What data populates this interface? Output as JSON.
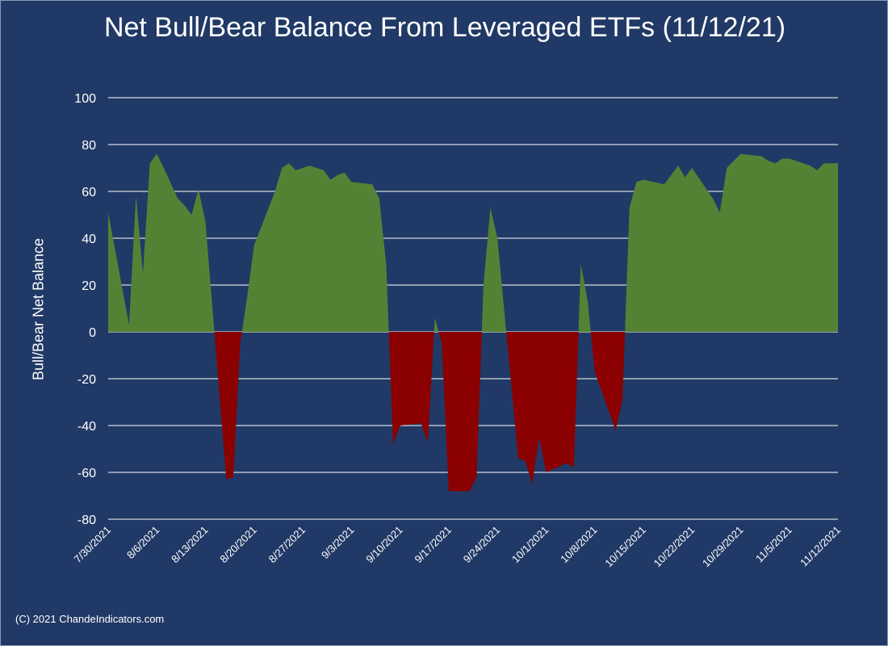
{
  "chart_data": {
    "type": "area",
    "title": "Net Bull/Bear Balance From Leveraged ETFs (11/12/21)",
    "xlabel": "",
    "ylabel": "Bull/Bear Net Balance",
    "ylim": [
      -80,
      100
    ],
    "yticks": [
      100,
      80,
      60,
      40,
      20,
      0,
      -20,
      -40,
      -60,
      -80
    ],
    "xlim": [
      "2021-07-30",
      "2021-11-12"
    ],
    "xtick_labels": [
      "7/30/2021",
      "8/6/2021",
      "8/13/2021",
      "8/20/2021",
      "8/27/2021",
      "9/3/2021",
      "9/10/2021",
      "9/17/2021",
      "9/24/2021",
      "10/1/2021",
      "10/8/2021",
      "10/15/2021",
      "10/22/2021",
      "10/29/2021",
      "11/5/2021",
      "11/12/2021"
    ],
    "grid": true,
    "legend": false,
    "colors": {
      "positive": "#548235",
      "negative": "#8b0000",
      "background": "#213966",
      "text": "#ffffff",
      "grid": "#ffffff"
    },
    "series": [
      {
        "x": [
          "2021-07-30",
          "2021-08-02",
          "2021-08-03",
          "2021-08-04",
          "2021-08-05",
          "2021-08-06",
          "2021-08-07",
          "2021-08-09",
          "2021-08-10",
          "2021-08-11",
          "2021-08-12",
          "2021-08-13",
          "2021-08-16",
          "2021-08-17",
          "2021-08-18",
          "2021-08-19",
          "2021-08-20",
          "2021-08-23",
          "2021-08-24",
          "2021-08-25",
          "2021-08-26",
          "2021-08-27",
          "2021-08-28",
          "2021-08-30",
          "2021-08-31",
          "2021-09-01",
          "2021-09-02",
          "2021-09-03",
          "2021-09-06",
          "2021-09-07",
          "2021-09-08",
          "2021-09-09",
          "2021-09-10",
          "2021-09-13",
          "2021-09-14",
          "2021-09-15",
          "2021-09-16",
          "2021-09-17",
          "2021-09-20",
          "2021-09-21",
          "2021-09-22",
          "2021-09-23",
          "2021-09-24",
          "2021-09-27",
          "2021-09-28",
          "2021-09-29",
          "2021-09-30",
          "2021-10-01",
          "2021-10-04",
          "2021-10-05",
          "2021-10-06",
          "2021-10-07",
          "2021-10-08",
          "2021-10-11",
          "2021-10-12",
          "2021-10-13",
          "2021-10-14",
          "2021-10-15",
          "2021-10-18",
          "2021-10-19",
          "2021-10-20",
          "2021-10-21",
          "2021-10-22",
          "2021-10-25",
          "2021-10-26",
          "2021-10-27",
          "2021-10-28",
          "2021-10-29",
          "2021-11-01",
          "2021-11-02",
          "2021-11-03",
          "2021-11-04",
          "2021-11-05",
          "2021-11-08",
          "2021-11-09",
          "2021-11-10",
          "2021-11-11",
          "2021-11-12"
        ],
        "values": [
          51,
          3,
          58,
          25,
          72,
          76,
          70,
          57,
          54,
          50,
          61,
          47,
          -63,
          -62,
          -5,
          15,
          37,
          60,
          70,
          72,
          69,
          70,
          71,
          69,
          65,
          67,
          68,
          64,
          63,
          57,
          29,
          -48,
          -40,
          -39,
          -47,
          6,
          -5,
          -68,
          -68,
          -62,
          20,
          53,
          40,
          -54,
          -55,
          -65,
          -45,
          -60,
          -56,
          -58,
          29,
          13,
          -17,
          -42,
          -29,
          53,
          64,
          65,
          63,
          67,
          71,
          66,
          70,
          57,
          51,
          70,
          73,
          76,
          75,
          73,
          72,
          74,
          74,
          71,
          69,
          72,
          72,
          72
        ],
        "label": ""
      }
    ]
  },
  "credit": "(C) 2021 ChandeIndicators.com"
}
